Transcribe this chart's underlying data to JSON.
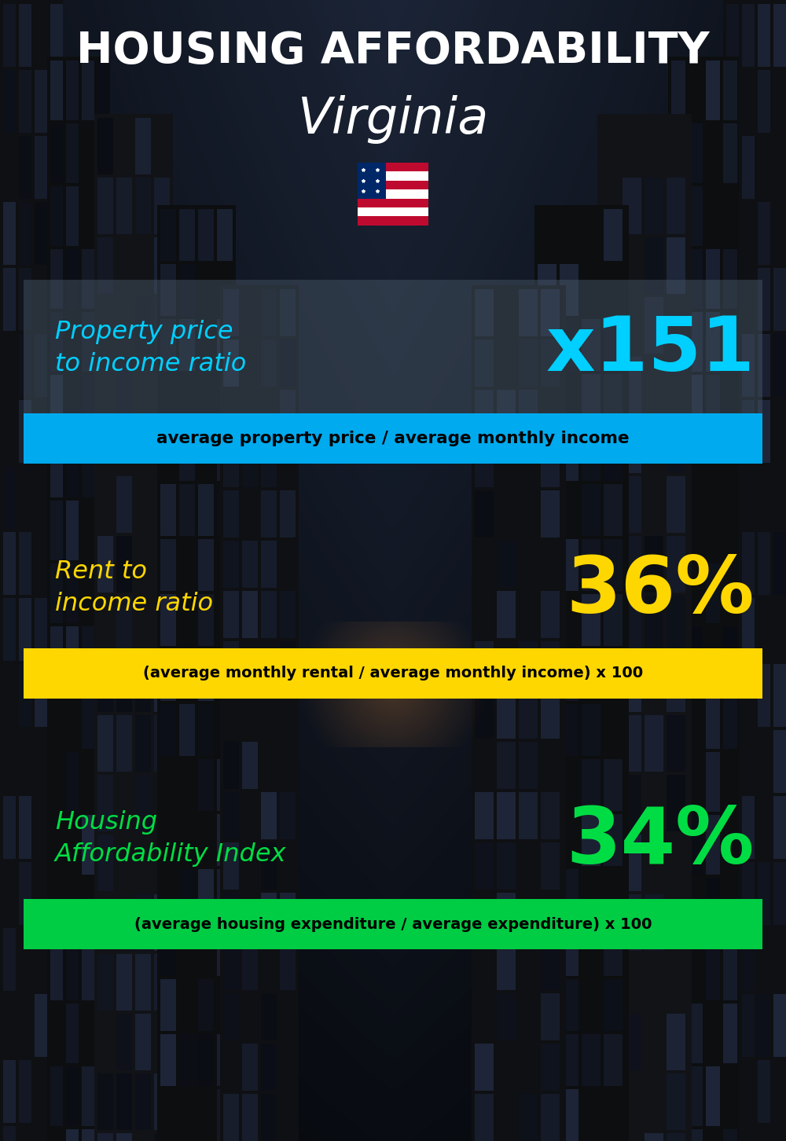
{
  "title_line1": "HOUSING AFFORDABILITY",
  "title_line2": "Virginia",
  "section1_label": "Property price\nto income ratio",
  "section1_value": "x151",
  "section1_sublabel": "average property price / average monthly income",
  "section1_label_color": "#00CFFF",
  "section1_value_color": "#00CFFF",
  "section1_bg_color": "#00AAEE",
  "section2_label": "Rent to\nincome ratio",
  "section2_value": "36%",
  "section2_sublabel": "(average monthly rental / average monthly income) x 100",
  "section2_label_color": "#FFD700",
  "section2_value_color": "#FFD700",
  "section2_bg_color": "#FFD700",
  "section3_label": "Housing\nAffordability Index",
  "section3_value": "34%",
  "section3_sublabel": "(average housing expenditure / average expenditure) x 100",
  "section3_label_color": "#00DD44",
  "section3_value_color": "#00DD44",
  "section3_bg_color": "#00CC44",
  "bg_color": "#0a1628",
  "title_color": "#FFFFFF",
  "sublabel_text_color": "#000000",
  "figwidth": 10.0,
  "figheight": 14.52,
  "dpi": 100
}
